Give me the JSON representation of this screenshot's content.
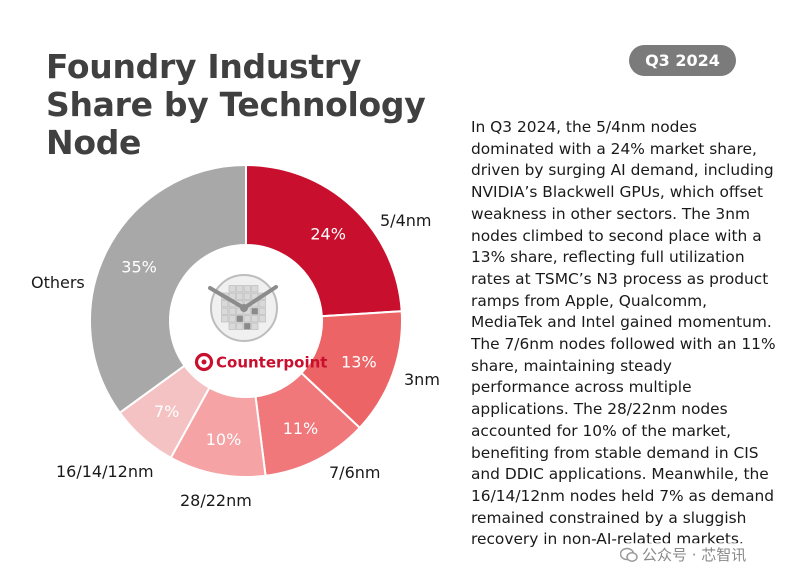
{
  "title": "Foundry Industry Share by Technology Node",
  "badge": "Q3 2024",
  "description": "In Q3 2024, the 5/4nm nodes\ndominated with a 24% market share,\ndriven by surging AI demand, including\nNVIDIA’s Blackwell GPUs, which offset\nweakness in other sectors. The 3nm\nnodes climbed to second place with a\n13% share, reflecting full utilization\nrates at TSMC’s N3 process as product\nramps from Apple, Qualcomm,\nMediaTek and Intel gained momentum.\nThe 7/6nm nodes followed with an 11%\nshare, maintaining steady\nperformance across multiple\napplications. The 28/22nm nodes\naccounted for 10% of the market,\nbenefiting from stable demand in CIS\nand DDIC applications. Meanwhile, the\n16/14/12nm nodes held 7% as demand\nremained constrained by a sluggish\nrecovery in non-AI-related markets.",
  "logo_text": "Counterpoint",
  "watermark": "公众号 · 芯智讯",
  "chart_data": {
    "type": "pie",
    "variant": "donut",
    "title": "Foundry Industry Share by Technology Node",
    "unit": "%",
    "slices": [
      {
        "label": "5/4nm",
        "value": 24,
        "value_label": "24%",
        "color": "#c8102e"
      },
      {
        "label": "3nm",
        "value": 13,
        "value_label": "13%",
        "color": "#ec6466"
      },
      {
        "label": "7/6nm",
        "value": 11,
        "value_label": "11%",
        "color": "#f0777a"
      },
      {
        "label": "28/22nm",
        "value": 10,
        "value_label": "10%",
        "color": "#f6a3a5"
      },
      {
        "label": "16/14/12nm",
        "value": 7,
        "value_label": "7%",
        "color": "#f5c2c3"
      },
      {
        "label": "Others",
        "value": 35,
        "value_label": "35%",
        "color": "#a8a8a8"
      }
    ],
    "colors": {
      "brand": "#c8102e",
      "logo_icon": "wafer-clock-icon"
    }
  }
}
